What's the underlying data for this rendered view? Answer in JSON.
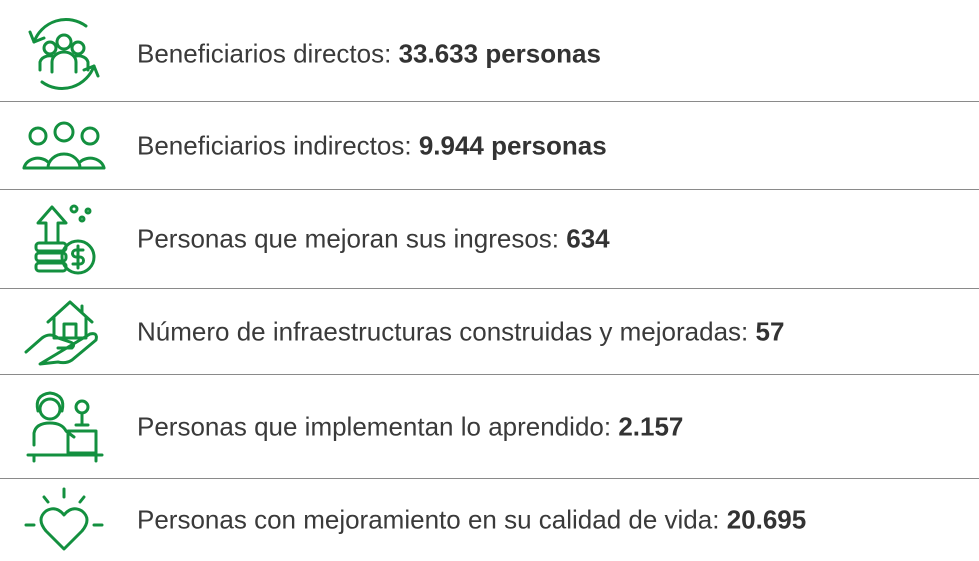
{
  "rows": [
    {
      "label": "Beneficiarios directos:",
      "value": "33.633 personas"
    },
    {
      "label": "Beneficiarios indirectos:",
      "value": "9.944 personas"
    },
    {
      "label": "Personas que mejoran sus ingresos:",
      "value": "634"
    },
    {
      "label": "Número de infraestructuras construidas y mejoradas:",
      "value": "57"
    },
    {
      "label": "Personas que implementan lo aprendido:",
      "value": "2.157"
    },
    {
      "label": "Personas con mejoramiento en su calidad de vida:",
      "value": "20.695"
    }
  ]
}
